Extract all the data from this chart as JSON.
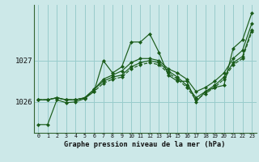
{
  "background_color": "#cce8e8",
  "grid_color": "#99cccc",
  "line_color": "#1a5c1a",
  "title": "Graphe pression niveau de la mer (hPa)",
  "ylim": [
    1025.25,
    1028.35
  ],
  "xlim": [
    -0.5,
    23.5
  ],
  "yticks": [
    1026,
    1027
  ],
  "xticks": [
    0,
    1,
    2,
    3,
    4,
    5,
    6,
    7,
    8,
    9,
    10,
    11,
    12,
    13,
    14,
    15,
    16,
    17,
    18,
    19,
    20,
    21,
    22,
    23
  ],
  "series": [
    {
      "y": [
        1025.45,
        1025.45,
        1026.05,
        1025.98,
        1026.0,
        1026.08,
        1026.25,
        1027.0,
        1026.7,
        1026.85,
        1027.45,
        1027.45,
        1027.65,
        1027.2,
        1026.65,
        1026.5,
        1026.5,
        1026.0,
        1026.25,
        1026.35,
        1026.4,
        1027.3,
        1027.5,
        1028.15
      ],
      "style": "-"
    },
    {
      "y": [
        1026.05,
        1026.05,
        1026.1,
        1026.05,
        1026.05,
        1026.1,
        1026.3,
        1026.55,
        1026.65,
        1026.75,
        1026.95,
        1027.05,
        1027.05,
        1027.0,
        1026.8,
        1026.7,
        1026.55,
        1026.25,
        1026.35,
        1026.5,
        1026.7,
        1027.05,
        1027.25,
        1027.9
      ],
      "style": "-"
    },
    {
      "y": [
        1026.05,
        1026.05,
        1026.1,
        1026.05,
        1026.05,
        1026.1,
        1026.3,
        1026.5,
        1026.6,
        1026.65,
        1026.85,
        1026.95,
        1027.0,
        1026.95,
        1026.75,
        1026.6,
        1026.4,
        1026.1,
        1026.25,
        1026.4,
        1026.6,
        1026.95,
        1027.1,
        1027.75
      ],
      "style": "-"
    },
    {
      "y": [
        1026.05,
        1026.05,
        1026.1,
        1026.05,
        1026.05,
        1026.1,
        1026.25,
        1026.45,
        1026.55,
        1026.6,
        1026.8,
        1026.9,
        1026.95,
        1026.9,
        1026.7,
        1026.55,
        1026.35,
        1026.05,
        1026.2,
        1026.35,
        1026.55,
        1026.9,
        1027.05,
        1027.7
      ],
      "style": "--"
    }
  ]
}
